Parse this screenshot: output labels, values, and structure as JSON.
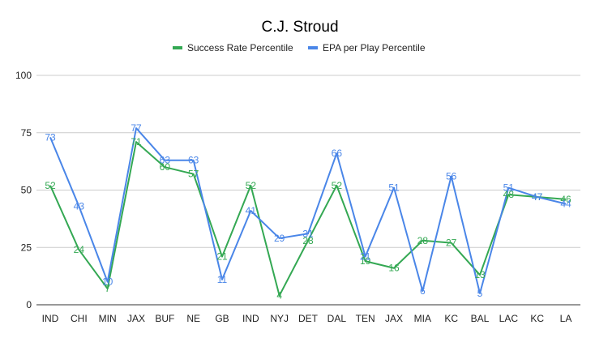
{
  "chart_data": {
    "type": "line",
    "title": "C.J. Stroud",
    "xlabel": "",
    "ylabel": "",
    "categories": [
      "IND",
      "CHI",
      "MIN",
      "JAX",
      "BUF",
      "NE",
      "GB",
      "IND",
      "NYJ",
      "DET",
      "DAL",
      "TEN",
      "JAX",
      "MIA",
      "KC",
      "BAL",
      "LAC",
      "KC",
      "LA"
    ],
    "ylim": [
      0,
      100
    ],
    "yticks": [
      0,
      25,
      50,
      75,
      100
    ],
    "grid": true,
    "legend_position": "top",
    "series": [
      {
        "name": "Success Rate Percentile",
        "color": "#34a853",
        "values": [
          52,
          24,
          7,
          71,
          60,
          57,
          21,
          52,
          4,
          28,
          52,
          19,
          16,
          28,
          27,
          13,
          48,
          47,
          46
        ]
      },
      {
        "name": "EPA per Play Percentile",
        "color": "#4a86e8",
        "values": [
          73,
          43,
          10,
          77,
          63,
          63,
          11,
          41,
          29,
          31,
          66,
          21,
          51,
          6,
          56,
          5,
          51,
          47,
          44
        ]
      }
    ]
  }
}
